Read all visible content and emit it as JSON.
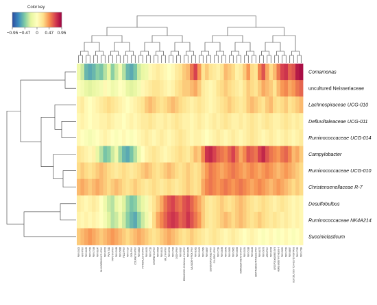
{
  "color_key": {
    "title": "Color key",
    "tick_labels": [
      "−0.95",
      "−0.47",
      "0",
      "0.47",
      "0.95"
    ],
    "tick_values": [
      -0.95,
      -0.47,
      0,
      0.47,
      0.95
    ],
    "range": [
      -0.95,
      0.95
    ],
    "colors": [
      "#2b4c9e",
      "#3b8bbf",
      "#7fcba4",
      "#e6f5a0",
      "#ffffbf",
      "#fee08b",
      "#f7904f",
      "#d53e4f",
      "#9e0142"
    ]
  },
  "chart_data": {
    "type": "heatmap",
    "title": "",
    "value_range": [
      -0.95,
      0.95
    ],
    "rows": [
      {
        "label": "Comamonas",
        "italic": true
      },
      {
        "label": "uncultured Neisseriaceae",
        "italic": false
      },
      {
        "label": "Lachnospiraceae UCG-010",
        "italic": true
      },
      {
        "label": "Defluviitaleaceae UCG-011",
        "italic": true
      },
      {
        "label": "Ruminococcaceae UCG-014",
        "italic": true
      },
      {
        "label": "Campylobacter",
        "italic": true
      },
      {
        "label": "Ruminococcaceae UCG-010",
        "italic": true
      },
      {
        "label": "Christensenellaceae R-7",
        "italic": true
      },
      {
        "label": "Desulfobulbus",
        "italic": true
      },
      {
        "label": "Ruminococcaceae NK4A214",
        "italic": true
      },
      {
        "label": "Succiniclasticum",
        "italic": true
      }
    ],
    "column_labels": [
      "PWY-5100",
      "ANY-PWY",
      "PWY-6122",
      "PWY-7221",
      "PWY-7196",
      "PWY-6147",
      "GLYCOGENSYNTH-PWY",
      "PWY-6703",
      "PWY-7111",
      "TRPSYN-PWY",
      "PWY-5188",
      "PWY-5686",
      "P122-PWY",
      "PWY-7197",
      "COA-PWY",
      "COLANSYN-PWY",
      "PWY-6609",
      "PYRIDNUCSYN-PWY",
      "PWY-6151",
      "PWY-7219",
      "OTOPBSYN-PWY",
      "PWY-5505",
      "PWY-6124",
      "VALSYN-PWY",
      "PWY-6700",
      "PWY-7323",
      "CODH-PWY",
      "PWY-6387",
      "BRANCHED-CHAIN-AA-SYN-PWY",
      "PWY-6163",
      "SALVADEHYPOX-PWY",
      "PWY-1861",
      "PWY-5103",
      "PWY-7664",
      "PWY-6897",
      "DENOVOPURINE2-PWY",
      "GLUDEG-I-PWY",
      "PWY-7234",
      "PWY-5838",
      "PWY-5840",
      "PWY-5850",
      "PWY-5862",
      "PWY-5896",
      "HOMOSER-METSYN-PWY",
      "PWY-5154",
      "PWY-5188",
      "PWY-6126",
      "BIOTIN-BIOSYNTHESIS-PWY",
      "PWY-6272",
      "PWY-5676",
      "ARO-PWY",
      "PWY-6708",
      "ARG-POLYAMINE-SYN",
      "HEME-BIOSYNTHESIS-II",
      "PWY-5659",
      "PWY-7229",
      "PWY-6897",
      "GLYCOLYSIS-TCA-GLYOX-BYPASS",
      "PWY-7332",
      "PWY-7384"
    ],
    "values": [
      [
        -0.15,
        -0.3,
        -0.55,
        -0.6,
        -0.55,
        -0.45,
        -0.5,
        -0.35,
        -0.2,
        -0.45,
        -0.3,
        -0.1,
        -0.35,
        -0.55,
        -0.6,
        -0.5,
        -0.3,
        -0.2,
        -0.15,
        0.05,
        0.1,
        0.15,
        0.1,
        0.05,
        0.0,
        0.05,
        0.15,
        0.2,
        0.3,
        0.35,
        0.55,
        0.7,
        0.45,
        0.2,
        0.3,
        0.2,
        0.15,
        0.1,
        0.2,
        0.35,
        0.3,
        0.25,
        0.1,
        0.15,
        0.3,
        0.45,
        0.25,
        0.2,
        0.5,
        0.65,
        0.4,
        0.25,
        0.35,
        0.55,
        0.7,
        0.75,
        0.6,
        0.65,
        0.85,
        0.9
      ],
      [
        -0.05,
        -0.1,
        -0.2,
        -0.25,
        -0.2,
        -0.15,
        -0.1,
        0.05,
        -0.05,
        -0.15,
        -0.1,
        0.0,
        -0.05,
        -0.2,
        -0.25,
        -0.2,
        -0.1,
        0.05,
        0.1,
        0.15,
        0.2,
        0.2,
        0.15,
        0.1,
        0.05,
        0.1,
        0.2,
        0.25,
        0.3,
        0.3,
        0.35,
        0.4,
        0.3,
        0.15,
        0.1,
        0.05,
        0.1,
        0.2,
        0.25,
        0.3,
        0.25,
        0.2,
        0.15,
        0.1,
        0.2,
        0.3,
        0.25,
        0.2,
        0.3,
        0.4,
        0.35,
        0.3,
        0.2,
        0.35,
        0.45,
        0.5,
        0.4,
        0.45,
        0.55,
        0.6
      ],
      [
        0.1,
        0.15,
        0.05,
        0.0,
        0.05,
        0.1,
        0.15,
        0.2,
        0.25,
        0.2,
        0.15,
        0.1,
        0.05,
        0.0,
        0.05,
        0.1,
        0.15,
        0.2,
        0.3,
        0.35,
        0.3,
        0.25,
        0.2,
        0.25,
        0.3,
        0.35,
        0.3,
        0.25,
        0.2,
        0.15,
        0.1,
        0.15,
        0.2,
        0.15,
        0.1,
        0.05,
        0.1,
        0.15,
        0.2,
        0.25,
        0.3,
        0.25,
        0.2,
        0.15,
        0.2,
        0.3,
        0.35,
        0.3,
        0.25,
        0.2,
        0.3,
        0.35,
        0.25,
        0.2,
        0.25,
        0.3,
        0.2,
        0.25,
        0.3,
        0.35
      ],
      [
        0.05,
        0.1,
        0.05,
        0.0,
        0.05,
        0.05,
        0.1,
        0.1,
        0.15,
        0.1,
        0.05,
        0.05,
        0.0,
        0.05,
        0.1,
        0.05,
        0.1,
        0.15,
        0.15,
        0.2,
        0.15,
        0.1,
        0.1,
        0.15,
        0.1,
        0.15,
        0.2,
        0.15,
        0.1,
        0.1,
        0.05,
        0.1,
        0.15,
        0.1,
        0.05,
        0.1,
        0.15,
        0.1,
        0.15,
        0.2,
        0.15,
        0.1,
        0.1,
        0.15,
        0.1,
        0.15,
        0.2,
        0.15,
        0.1,
        0.15,
        0.2,
        0.15,
        0.1,
        0.1,
        0.15,
        0.2,
        0.15,
        0.1,
        0.15,
        0.1
      ],
      [
        0.05,
        0.0,
        -0.05,
        -0.1,
        -0.05,
        0.0,
        0.05,
        0.1,
        0.05,
        0.0,
        -0.05,
        0.0,
        0.05,
        0.0,
        -0.05,
        0.0,
        0.05,
        0.1,
        0.15,
        0.1,
        0.05,
        0.1,
        0.15,
        0.1,
        0.05,
        0.1,
        0.15,
        0.2,
        0.15,
        0.1,
        0.05,
        0.1,
        0.1,
        0.05,
        0.0,
        0.05,
        0.1,
        0.15,
        0.1,
        0.05,
        0.1,
        0.15,
        0.1,
        0.05,
        0.1,
        0.15,
        0.2,
        0.15,
        0.1,
        0.05,
        0.1,
        0.15,
        0.1,
        0.05,
        0.1,
        0.15,
        0.1,
        0.05,
        0.1,
        0.15
      ],
      [
        0.2,
        0.15,
        0.1,
        0.05,
        0.1,
        -0.2,
        -0.35,
        -0.5,
        -0.45,
        -0.3,
        -0.15,
        -0.4,
        -0.55,
        -0.6,
        -0.5,
        -0.35,
        -0.15,
        0.0,
        0.1,
        0.15,
        0.2,
        0.15,
        0.1,
        0.05,
        0.1,
        0.15,
        0.2,
        0.25,
        0.2,
        0.15,
        0.25,
        0.35,
        0.3,
        0.5,
        0.75,
        0.8,
        0.7,
        0.6,
        0.55,
        0.5,
        0.6,
        0.7,
        0.55,
        0.4,
        0.5,
        0.65,
        0.6,
        0.55,
        0.7,
        0.8,
        0.65,
        0.55,
        0.5,
        0.45,
        0.55,
        0.6,
        0.5,
        0.35,
        0.4,
        0.3
      ],
      [
        0.25,
        0.3,
        0.25,
        0.2,
        0.25,
        0.3,
        0.35,
        0.3,
        0.25,
        0.2,
        0.15,
        0.2,
        0.25,
        0.2,
        0.15,
        0.2,
        0.25,
        0.3,
        0.35,
        0.3,
        0.25,
        0.2,
        0.25,
        0.3,
        0.35,
        0.3,
        0.25,
        0.2,
        0.25,
        0.3,
        0.25,
        0.2,
        0.25,
        0.35,
        0.45,
        0.55,
        0.5,
        0.45,
        0.4,
        0.45,
        0.5,
        0.55,
        0.5,
        0.45,
        0.4,
        0.45,
        0.5,
        0.45,
        0.4,
        0.45,
        0.5,
        0.45,
        0.4,
        0.35,
        0.4,
        0.45,
        0.4,
        0.35,
        0.3,
        0.25
      ],
      [
        0.35,
        0.4,
        0.35,
        0.3,
        0.35,
        0.4,
        0.35,
        0.3,
        0.25,
        0.3,
        0.35,
        0.3,
        0.25,
        0.2,
        0.25,
        0.3,
        0.25,
        0.2,
        0.15,
        0.2,
        0.25,
        0.2,
        0.15,
        0.2,
        0.25,
        0.2,
        0.15,
        0.2,
        0.25,
        0.3,
        0.25,
        0.2,
        0.25,
        0.4,
        0.5,
        0.55,
        0.5,
        0.45,
        0.5,
        0.55,
        0.5,
        0.45,
        0.5,
        0.55,
        0.5,
        0.45,
        0.4,
        0.45,
        0.5,
        0.45,
        0.4,
        0.35,
        0.4,
        0.45,
        0.4,
        0.35,
        0.3,
        0.25,
        0.3,
        0.25
      ],
      [
        0.15,
        0.1,
        0.05,
        0.1,
        0.15,
        0.1,
        0.0,
        -0.15,
        -0.3,
        -0.35,
        -0.2,
        -0.1,
        -0.25,
        -0.4,
        -0.5,
        -0.45,
        -0.3,
        -0.2,
        -0.1,
        0.1,
        0.2,
        0.3,
        0.4,
        0.55,
        0.65,
        0.7,
        0.6,
        0.55,
        0.65,
        0.7,
        0.6,
        0.5,
        0.4,
        0.3,
        0.2,
        0.15,
        0.2,
        0.25,
        0.3,
        0.25,
        0.2,
        0.25,
        0.3,
        0.35,
        0.3,
        0.25,
        0.2,
        0.15,
        0.2,
        0.25,
        0.2,
        0.15,
        0.1,
        0.15,
        0.2,
        0.15,
        0.1,
        0.05,
        0.1,
        0.05
      ],
      [
        0.1,
        0.05,
        0.1,
        0.05,
        0.1,
        0.05,
        0.0,
        -0.1,
        -0.25,
        -0.35,
        -0.3,
        -0.15,
        -0.3,
        -0.45,
        -0.55,
        -0.6,
        -0.45,
        -0.3,
        -0.15,
        0.05,
        0.25,
        0.4,
        0.5,
        0.6,
        0.7,
        0.75,
        0.7,
        0.6,
        0.65,
        0.75,
        0.65,
        0.55,
        0.45,
        0.3,
        0.2,
        0.15,
        0.2,
        0.25,
        0.3,
        0.35,
        0.3,
        0.25,
        0.3,
        0.35,
        0.3,
        0.25,
        0.2,
        0.25,
        0.3,
        0.25,
        0.2,
        0.15,
        0.2,
        0.15,
        0.1,
        0.15,
        0.1,
        0.05,
        0.1,
        0.05
      ],
      [
        0.3,
        0.35,
        0.4,
        0.45,
        0.4,
        0.35,
        0.3,
        0.35,
        0.4,
        0.45,
        0.4,
        0.35,
        0.3,
        0.25,
        0.3,
        0.35,
        0.4,
        0.35,
        0.3,
        0.25,
        0.2,
        0.25,
        0.3,
        0.35,
        0.4,
        0.35,
        0.3,
        0.25,
        0.2,
        0.25,
        0.3,
        0.25,
        0.2,
        0.15,
        0.1,
        0.15,
        0.2,
        0.15,
        0.1,
        0.05,
        0.1,
        0.15,
        0.1,
        0.05,
        0.0,
        0.05,
        0.1,
        0.05,
        0.0,
        -0.05,
        0.0,
        0.05,
        0.0,
        -0.05,
        0.0,
        0.05,
        0.0,
        -0.05,
        0.0,
        0.05
      ]
    ]
  }
}
